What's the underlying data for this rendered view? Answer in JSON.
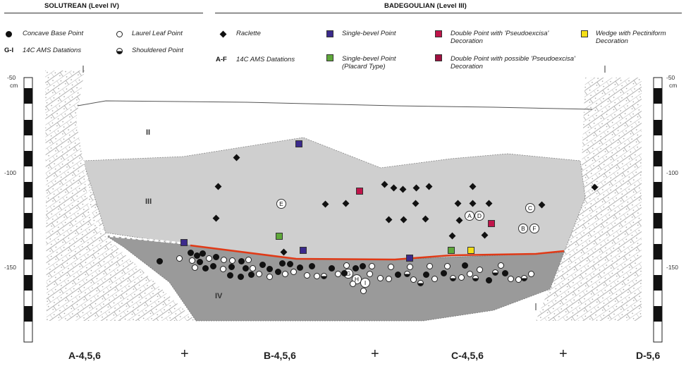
{
  "header": {
    "left": "SOLUTREAN (Level IV)",
    "right": "BADEGOULIAN (Level III)"
  },
  "legend": {
    "concave_base": "Concave Base Point",
    "laurel_leaf": "Laurel Leaf Point",
    "shouldered": "Shouldered Point",
    "gi_code": "G-I",
    "gi_text": "14C AMS Datations",
    "raclette": "Raclette",
    "af_code": "A-F",
    "af_text": "14C AMS Datations",
    "single_bevel": "Single-bevel Point",
    "single_bevel_placard": "Single-bevel Point (Placard Type)",
    "double_pseudo": "Double Point with 'Pseudoexcisa' Decoration",
    "double_possible": "Double Point with possible 'Pseudoexcisa' Decoration",
    "wedge": "Wedge with Pectiniform Decoration"
  },
  "colors": {
    "purple": "#3b2a8c",
    "green": "#5fa83a",
    "crimson": "#c0144a",
    "yellow": "#f5df16",
    "boundary": "#e03a17",
    "level3": "#cfcfcf",
    "level4": "#9a9a9a"
  },
  "scale": {
    "unit": "cm",
    "ticks": [
      "-50",
      "-100",
      "-150"
    ]
  },
  "layers": {
    "l2": "II",
    "l3": "III",
    "l4": "IV"
  },
  "datations": {
    "A": "A",
    "B": "B",
    "C": "C",
    "D": "D",
    "E": "E",
    "F": "F",
    "G": "G",
    "H": "H",
    "I": "I"
  },
  "x_axis": {
    "labels": [
      "A-4,5,6",
      "B-4,5,6",
      "C-4,5,6",
      "D-5,6"
    ],
    "plus": "+"
  }
}
